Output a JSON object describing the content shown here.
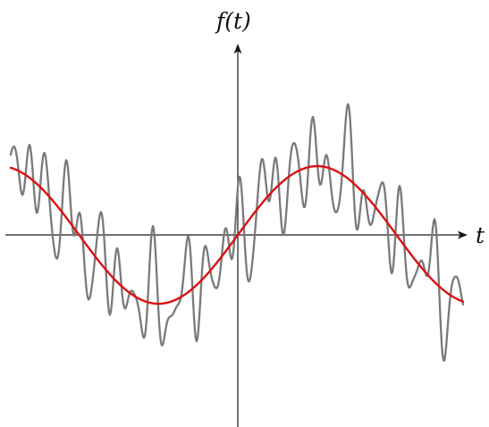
{
  "diagram": {
    "y_axis_label": "f(t)",
    "x_axis_label": "t",
    "colors": {
      "axes": "#1a1a1a",
      "noisy_signal": "#7a7a7a",
      "smooth_signal": "#dd1111"
    }
  }
}
